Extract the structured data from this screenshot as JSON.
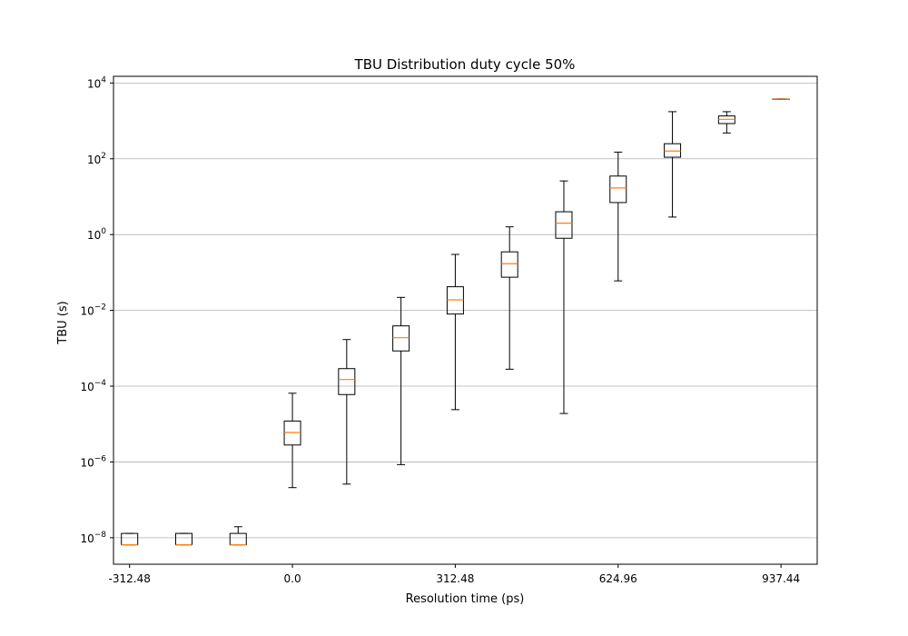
{
  "chart_data": {
    "type": "box",
    "title": "TBU Distribution duty cycle 50%",
    "xlabel": "Resolution time (ps)",
    "ylabel": "TBU (s)",
    "yscale": "log",
    "ylim": [
      2e-09,
      15000
    ],
    "xlim": [
      -343.3,
      1006.9
    ],
    "x_ticks": [
      {
        "value": -312.48,
        "label": "-312.48"
      },
      {
        "value": 0.0,
        "label": "0.0"
      },
      {
        "value": 312.48,
        "label": "312.48"
      },
      {
        "value": 624.96,
        "label": "624.96"
      },
      {
        "value": 937.44,
        "label": "937.44"
      }
    ],
    "y_ticks": [
      {
        "value": 1e-08,
        "base": "10",
        "exp": "−8"
      },
      {
        "value": 1e-06,
        "base": "10",
        "exp": "−6"
      },
      {
        "value": 0.0001,
        "base": "10",
        "exp": "−4"
      },
      {
        "value": 0.01,
        "base": "10",
        "exp": "−2"
      },
      {
        "value": 1,
        "base": "10",
        "exp": "0"
      },
      {
        "value": 100,
        "base": "10",
        "exp": "2"
      },
      {
        "value": 10000,
        "base": "10",
        "exp": "4"
      }
    ],
    "grid": {
      "y": true,
      "x": false
    },
    "colors": {
      "box": "#000000",
      "median": "#ff7f0e",
      "grid": "#b0b0b0"
    },
    "boxes": [
      {
        "x": -312.48,
        "whislo": 6.5e-09,
        "q1": 6.5e-09,
        "med": 6.5e-09,
        "q3": 1.3e-08,
        "whishi": 1.3e-08
      },
      {
        "x": -208.32,
        "whislo": 6.5e-09,
        "q1": 6.5e-09,
        "med": 6.5e-09,
        "q3": 1.3e-08,
        "whishi": 1.3e-08
      },
      {
        "x": -104.16,
        "whislo": 6.5e-09,
        "q1": 6.5e-09,
        "med": 6.5e-09,
        "q3": 1.3e-08,
        "whishi": 1.95e-08
      },
      {
        "x": 0.0,
        "whislo": 2.1e-07,
        "q1": 2.8e-06,
        "med": 6e-06,
        "q3": 1.2e-05,
        "whishi": 6.5e-05
      },
      {
        "x": 104.16,
        "whislo": 2.6e-07,
        "q1": 6e-05,
        "med": 0.00015,
        "q3": 0.00029,
        "whishi": 0.0017
      },
      {
        "x": 208.32,
        "whislo": 8.5e-07,
        "q1": 0.00085,
        "med": 0.0019,
        "q3": 0.0039,
        "whishi": 0.022
      },
      {
        "x": 312.48,
        "whislo": 2.4e-05,
        "q1": 0.008,
        "med": 0.019,
        "q3": 0.042,
        "whishi": 0.3
      },
      {
        "x": 416.64,
        "whislo": 0.00028,
        "q1": 0.075,
        "med": 0.17,
        "q3": 0.35,
        "whishi": 1.6
      },
      {
        "x": 520.8,
        "whislo": 1.9e-05,
        "q1": 0.8,
        "med": 2.0,
        "q3": 4.0,
        "whishi": 26
      },
      {
        "x": 624.96,
        "whislo": 0.06,
        "q1": 7.0,
        "med": 17,
        "q3": 35,
        "whishi": 150
      },
      {
        "x": 729.12,
        "whislo": 2.9,
        "q1": 110,
        "med": 160,
        "q3": 250,
        "whishi": 1750
      },
      {
        "x": 833.28,
        "whislo": 480,
        "q1": 850,
        "med": 1100,
        "q3": 1350,
        "whishi": 1750
      },
      {
        "x": 937.44,
        "whislo": 3700,
        "q1": 3700,
        "med": 3750,
        "q3": 3800,
        "whishi": 3800
      }
    ]
  }
}
